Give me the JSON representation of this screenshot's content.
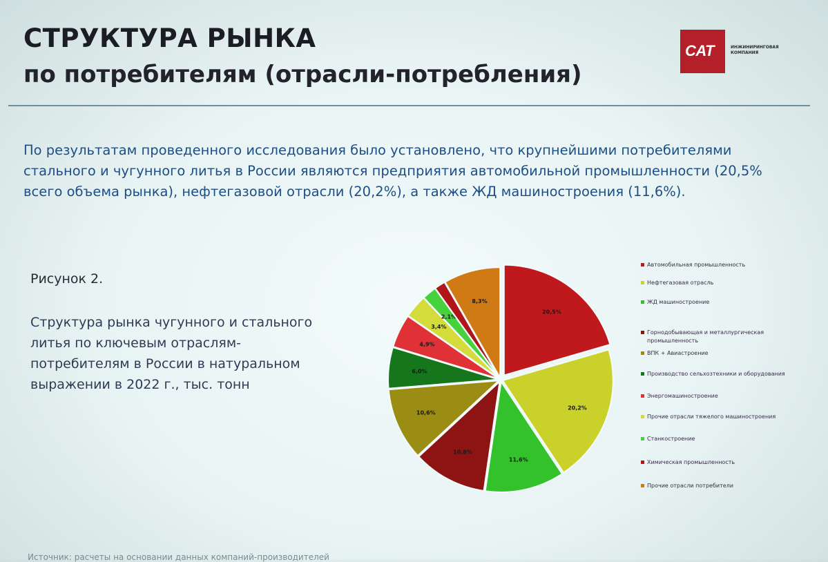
{
  "header": {
    "title_line1": "СТРУКТУРА РЫНКА",
    "title_line2": "по потребителям (отрасли-потребления)"
  },
  "logo": {
    "mark": "САТ",
    "caption": "ИНЖИНИРИНГОВАЯ КОМПАНИЯ",
    "color": "#b3202a"
  },
  "intro_text": "По результатам проведенного исследования было установлено, что крупнейшими потребителями стального и чугунного литья в России являются предприятия автомобильной промышленности (20,5% всего объема рынка), нефтегазовой отрасли (20,2%), а также ЖД машиностроения (11,6%).",
  "figure": {
    "label": "Рисунок 2.",
    "caption": "Структура рынка чугунного и стального литья по ключевым отраслям-потребителям в России в натуральном выражении в 2022 г., тыс. тонн"
  },
  "chart_data": {
    "type": "pie",
    "slices": [
      {
        "label": "Автомобильная промышленность",
        "value": 20.5,
        "text": "20,5%",
        "color": "#c0191d"
      },
      {
        "label": "Нефтегазовая отрасль",
        "value": 20.2,
        "text": "20,2%",
        "color": "#c9d12a"
      },
      {
        "label": "ЖД машиностроение",
        "value": 11.6,
        "text": "11,6%",
        "color": "#34c22c"
      },
      {
        "label": "Горнодобывающая и металлургическая промышленность",
        "value": 10.8,
        "text": "10,8%",
        "color": "#8e1414"
      },
      {
        "label": "ВПК + Авиастроение",
        "value": 10.6,
        "text": "10,6%",
        "color": "#9b8c14"
      },
      {
        "label": "Производство сельхозтехники и оборудования",
        "value": 6.0,
        "text": "6,0%",
        "color": "#16761b"
      },
      {
        "label": "Энергомашиностроение",
        "value": 4.9,
        "text": "4,9%",
        "color": "#df3136"
      },
      {
        "label": "Прочие отрасли тяжелого машиностроения",
        "value": 3.4,
        "text": "3,4%",
        "color": "#d3dc3a"
      },
      {
        "label": "Станкостроение",
        "value": 2.1,
        "text": "2,1%",
        "color": "#47d13d"
      },
      {
        "label": "Химическая промышленность",
        "value": 1.6,
        "text": "",
        "color": "#b0151a"
      },
      {
        "label": "Прочие отрасли потребители",
        "value": 8.3,
        "text": "8,3%",
        "color": "#cf7a14"
      }
    ],
    "legend_position": "right"
  },
  "source": "Источник: расчеты на основании данных компаний-производителей"
}
